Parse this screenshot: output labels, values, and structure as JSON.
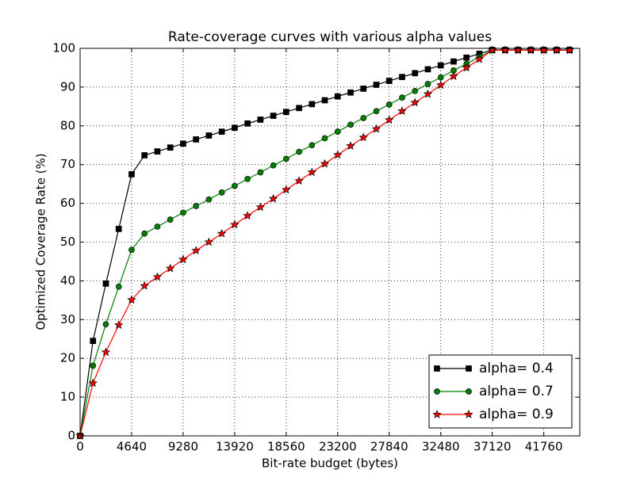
{
  "chart_data": {
    "type": "line",
    "title": "Rate-coverage curves with various alpha values",
    "xlabel": "Bit-rate budget (bytes)",
    "ylabel": "Optimized Coverage Rate (%)",
    "x": [
      0,
      1160,
      2320,
      3480,
      4640,
      5800,
      6960,
      8120,
      9280,
      10440,
      11600,
      12760,
      13920,
      15080,
      16240,
      17400,
      18560,
      19720,
      20880,
      22040,
      23200,
      24360,
      25520,
      26680,
      27840,
      29000,
      30160,
      31320,
      32480,
      33640,
      34800,
      35960,
      37120,
      38280,
      39440,
      40600,
      41760,
      42920,
      44080
    ],
    "series": [
      {
        "name": "alpha= 0.4",
        "color": "#000000",
        "marker": "square",
        "values": [
          0,
          24.5,
          39.3,
          53.4,
          67.5,
          72.4,
          73.4,
          74.4,
          75.4,
          76.5,
          77.5,
          78.5,
          79.5,
          80.6,
          81.6,
          82.6,
          83.6,
          84.6,
          85.6,
          86.6,
          87.6,
          88.6,
          89.6,
          90.6,
          91.6,
          92.6,
          93.6,
          94.6,
          95.6,
          96.6,
          97.6,
          98.6,
          99.6,
          99.6,
          99.6,
          99.6,
          99.6,
          99.6,
          99.6
        ]
      },
      {
        "name": "alpha= 0.7",
        "color": "#008000",
        "marker": "circle",
        "values": [
          0,
          18.1,
          28.8,
          38.5,
          48.0,
          52.2,
          54.0,
          55.8,
          57.6,
          59.3,
          61.0,
          62.8,
          64.5,
          66.3,
          68.0,
          69.8,
          71.5,
          73.3,
          75.0,
          76.8,
          78.5,
          80.3,
          82.0,
          83.8,
          85.5,
          87.3,
          89.0,
          90.8,
          92.5,
          94.3,
          96.0,
          97.8,
          99.5,
          99.5,
          99.5,
          99.5,
          99.5,
          99.5,
          99.5
        ]
      },
      {
        "name": "alpha= 0.9",
        "color": "#ff0000",
        "marker": "star",
        "values": [
          0,
          13.6,
          21.6,
          28.6,
          35.1,
          38.7,
          41.0,
          43.2,
          45.5,
          47.8,
          50.0,
          52.2,
          54.5,
          56.8,
          59.0,
          61.2,
          63.5,
          65.8,
          68.0,
          70.2,
          72.5,
          74.8,
          77.0,
          79.2,
          81.5,
          83.8,
          86.0,
          88.2,
          90.5,
          92.8,
          95.0,
          97.2,
          99.5,
          99.5,
          99.5,
          99.5,
          99.5,
          99.5,
          99.5
        ]
      }
    ],
    "xlim": [
      0,
      45000
    ],
    "xticks": [
      0,
      4640,
      9280,
      13920,
      18560,
      23200,
      27840,
      32480,
      37120,
      41760
    ],
    "ylim": [
      0,
      100
    ],
    "yticks": [
      0,
      10,
      20,
      30,
      40,
      50,
      60,
      70,
      80,
      90,
      100
    ],
    "grid": true,
    "legend": "lower right"
  }
}
